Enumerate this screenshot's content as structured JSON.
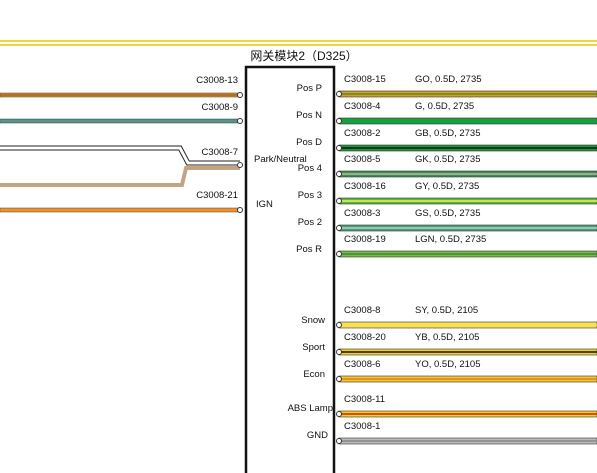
{
  "title": "网关模块2（D325）",
  "left_pins": [
    {
      "connector": "C3008-13"
    },
    {
      "connector": "C3008-9"
    },
    {
      "connector": "C3008-7"
    },
    {
      "connector": "C3008-21"
    }
  ],
  "module_pins": [
    "Pos P",
    "Pos N",
    "Pos D",
    "Park/Neutral",
    "Pos 4",
    "Pos 3",
    "IGN",
    "Pos 2",
    "Pos R",
    "Snow",
    "Sport",
    "Econ",
    "ABS Lamp",
    "GND"
  ],
  "right_pins": [
    {
      "connector": "C3008-15",
      "wire": "GO, 0.5D, 2735"
    },
    {
      "connector": "C3008-4",
      "wire": "G, 0.5D, 2735"
    },
    {
      "connector": "C3008-2",
      "wire": "GB, 0.5D, 2735"
    },
    {
      "connector": "C3008-5",
      "wire": "GK, 0.5D, 2735"
    },
    {
      "connector": "C3008-16",
      "wire": "GY, 0.5D, 2735"
    },
    {
      "connector": "C3008-3",
      "wire": "GS, 0.5D, 2735"
    },
    {
      "connector": "C3008-19",
      "wire": "LGN, 0.5D, 2735"
    },
    {
      "connector": "C3008-8",
      "wire": "SY, 0.5D, 2105"
    },
    {
      "connector": "C3008-20",
      "wire": "YB, 0.5D, 2105"
    },
    {
      "connector": "C3008-6",
      "wire": "YO, 0.5D, 2105"
    },
    {
      "connector": "C3008-11"
    },
    {
      "connector": "C3008-1"
    }
  ]
}
